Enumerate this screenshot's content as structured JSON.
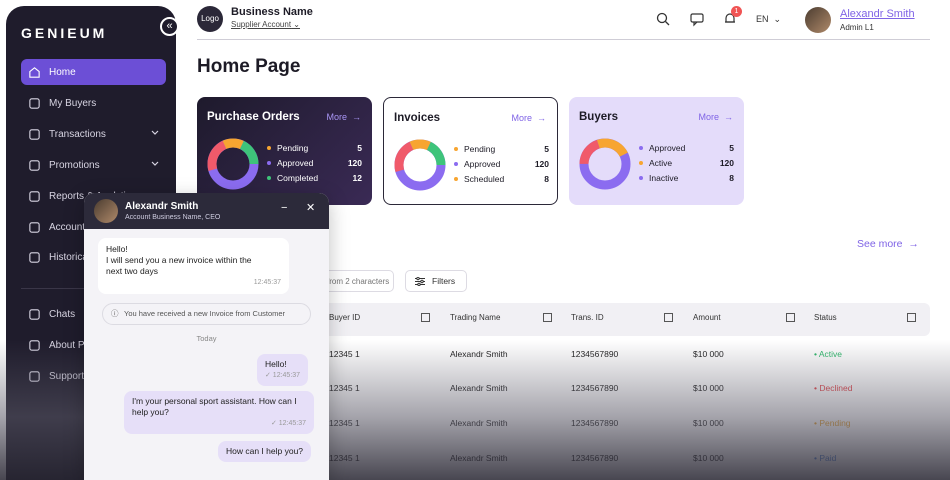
{
  "brand": "GENIEUM",
  "sidebar": {
    "collapse_label": "«",
    "items": [
      {
        "label": "Home",
        "icon": "home-icon",
        "active": true
      },
      {
        "label": "My Buyers",
        "icon": "buyers-icon"
      },
      {
        "label": "Transactions",
        "icon": "transactions-icon",
        "chevron": "⌄"
      },
      {
        "label": "Promotions",
        "icon": "promotions-icon",
        "chevron": "⌄"
      },
      {
        "label": "Reports & Analytics",
        "icon": "reports-icon"
      },
      {
        "label": "Account",
        "icon": "account-icon"
      },
      {
        "label": "Historical",
        "icon": "historical-icon"
      },
      {
        "label": "Chats",
        "icon": "chats-icon"
      },
      {
        "label": "About Platform",
        "icon": "about-icon"
      },
      {
        "label": "Support",
        "icon": "support-icon"
      }
    ]
  },
  "header": {
    "logo_label": "Logo",
    "business_name": "Business Name",
    "account_type": "Supplier Account",
    "notification_count": "1",
    "language": "EN",
    "user_name": "Alexandr Smith",
    "user_role": "Admin L1"
  },
  "page_title": "Home Page",
  "cards": [
    {
      "title": "Purchase Orders",
      "more": "More",
      "legend": [
        {
          "label": "Pending",
          "value": "5",
          "color": "#f7a531"
        },
        {
          "label": "Approved",
          "value": "120",
          "color": "#8b6cf0"
        },
        {
          "label": "Completed",
          "value": "12",
          "color": "#3ec47a"
        }
      ]
    },
    {
      "title": "Invoices",
      "more": "More",
      "legend": [
        {
          "label": "Pending",
          "value": "5",
          "color": "#f7a531"
        },
        {
          "label": "Approved",
          "value": "120",
          "color": "#8b6cf0"
        },
        {
          "label": "Scheduled",
          "value": "8",
          "color": "#f7a531"
        }
      ]
    },
    {
      "title": "Buyers",
      "more": "More",
      "legend": [
        {
          "label": "Approved",
          "value": "5",
          "color": "#8b6cf0"
        },
        {
          "label": "Active",
          "value": "120",
          "color": "#f7a531"
        },
        {
          "label": "Inactive",
          "value": "8",
          "color": "#8b6cf0"
        }
      ]
    }
  ],
  "see_more": "See more",
  "search": {
    "placeholder": "from 2 characters"
  },
  "filters_label": "Filters",
  "table": {
    "columns": [
      "Buyer ID",
      "Trading Name",
      "Trans. ID",
      "Amount",
      "Status"
    ],
    "rows": [
      {
        "buyer_id": "12345 1",
        "trading_name": "Alexandr Smith",
        "trans_id": "1234567890",
        "amount": "$10 000",
        "status": "Active",
        "status_color": "#2fb86b"
      },
      {
        "buyer_id": "12345 1",
        "trading_name": "Alexandr Smith",
        "trans_id": "1234567890",
        "amount": "$10 000",
        "status": "Declined",
        "status_color": "#e5484d"
      },
      {
        "buyer_id": "12345 1",
        "trading_name": "Alexandr Smith",
        "trans_id": "1234567890",
        "amount": "$10 000",
        "status": "Pending",
        "status_color": "#e8a331"
      },
      {
        "buyer_id": "12345 1",
        "trading_name": "Alexandr Smith",
        "trans_id": "1234567890",
        "amount": "$10 000",
        "status": "Paid",
        "status_color": "#5a8ad6"
      }
    ]
  },
  "chat": {
    "name": "Alexandr Smith",
    "subtitle": "Account Business Name, CEO",
    "minimize": "−",
    "close": "✕",
    "msg1": {
      "lines": [
        "Hello!",
        "I will send you a new invoice within the",
        "next two days"
      ],
      "time": "12:45:37"
    },
    "system": "You have received a new Invoice from Customer",
    "day_label": "Today",
    "out1": {
      "text": "Hello!",
      "time": "✓ 12:45:37"
    },
    "in2": {
      "lines": [
        "I'm your personal sport assistant. How can I",
        "help you?"
      ],
      "time": "✓ 12:45:37"
    },
    "out2": {
      "text": "How can I help you?"
    }
  }
}
